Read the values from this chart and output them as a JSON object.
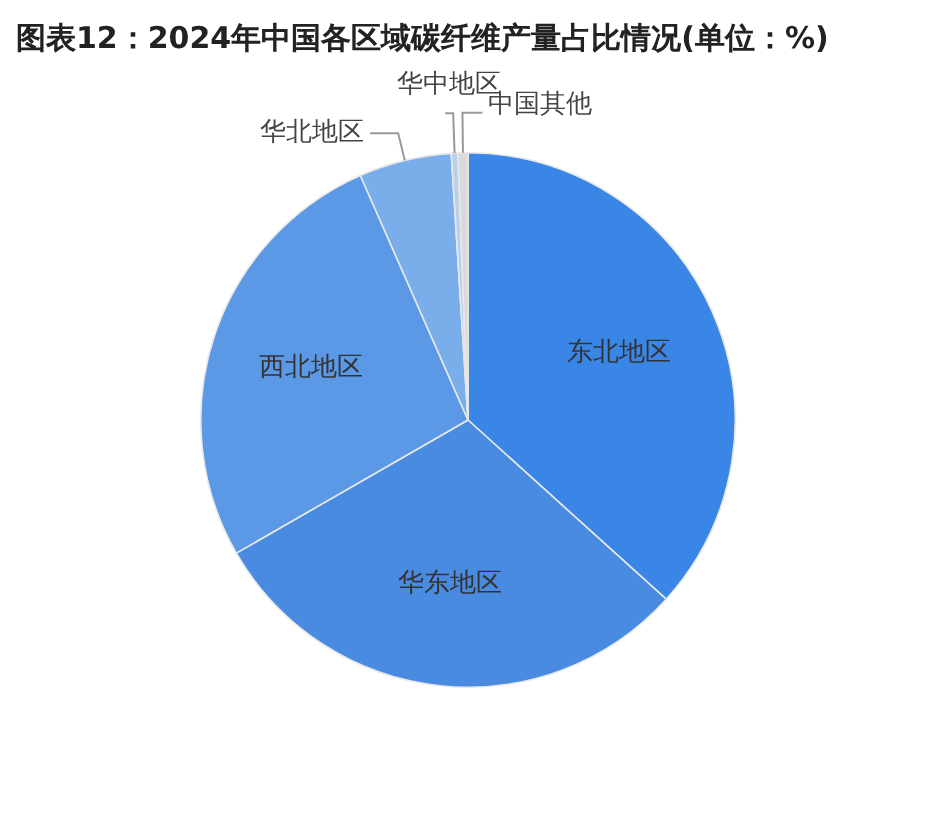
{
  "chart_data": {
    "type": "pie",
    "title": "图表12：2024年中国各区域碳纤维产量占比情况(单位：%)",
    "categories": [
      "东北地区",
      "华东地区",
      "西北地区",
      "华北地区",
      "华中地区",
      "中国其他"
    ],
    "values": [
      36.7,
      30.0,
      26.7,
      5.6,
      0.4,
      0.6
    ],
    "colors": [
      "#3a86e6",
      "#4a8be2",
      "#5b98e6",
      "#7aaeea",
      "#b8d0ee",
      "#d9d9d9"
    ],
    "legend": false
  }
}
